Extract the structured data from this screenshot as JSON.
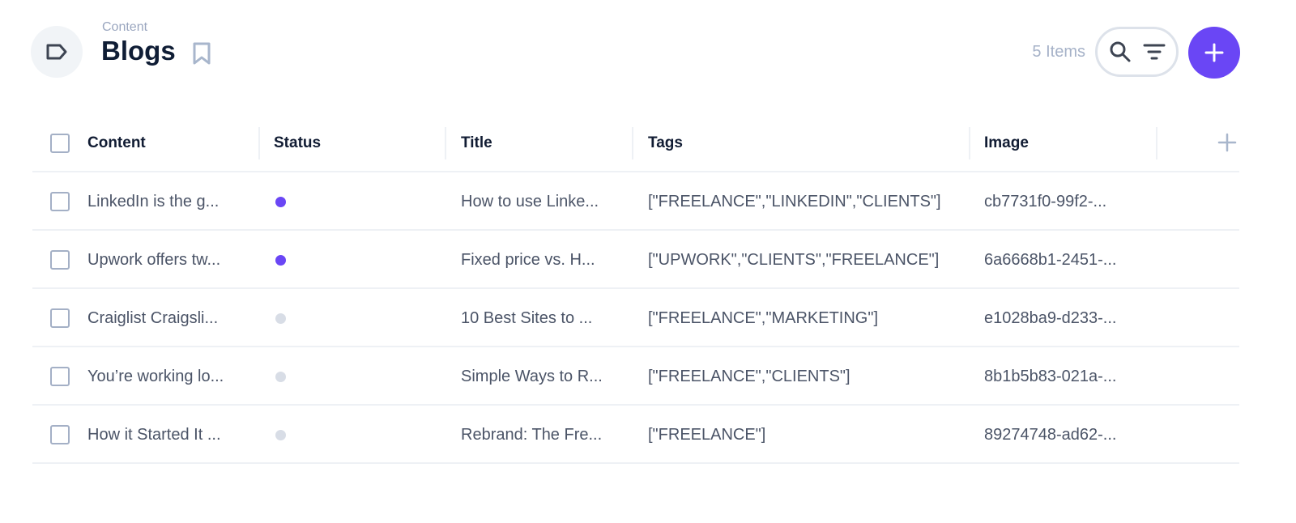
{
  "header": {
    "breadcrumb": "Content",
    "title": "Blogs",
    "item_count": "5 Items",
    "icon": "tag-icon"
  },
  "colors": {
    "accent": "#6a46f5",
    "status_active": "#6a46f5",
    "status_inactive": "#d8dde6"
  },
  "table": {
    "columns": [
      "Content",
      "Status",
      "Title",
      "Tags",
      "Image"
    ],
    "rows": [
      {
        "content": "LinkedIn is the g...",
        "status": "active",
        "title": "How to use Linke...",
        "tags": "[\"FREELANCE\",\"LINKEDIN\",\"CLIENTS\"]",
        "image": "cb7731f0-99f2-..."
      },
      {
        "content": "Upwork offers tw...",
        "status": "active",
        "title": "Fixed price vs. H...",
        "tags": "[\"UPWORK\",\"CLIENTS\",\"FREELANCE\"]",
        "image": "6a6668b1-2451-..."
      },
      {
        "content": "Craiglist Craigsli...",
        "status": "inactive",
        "title": "10 Best Sites to ...",
        "tags": "[\"FREELANCE\",\"MARKETING\"]",
        "image": "e1028ba9-d233-..."
      },
      {
        "content": "You’re working lo...",
        "status": "inactive",
        "title": "Simple Ways to R...",
        "tags": "[\"FREELANCE\",\"CLIENTS\"]",
        "image": "8b1b5b83-021a-..."
      },
      {
        "content": "How it Started It ...",
        "status": "inactive",
        "title": "Rebrand: The Fre...",
        "tags": "[\"FREELANCE\"]",
        "image": "89274748-ad62-..."
      }
    ]
  }
}
